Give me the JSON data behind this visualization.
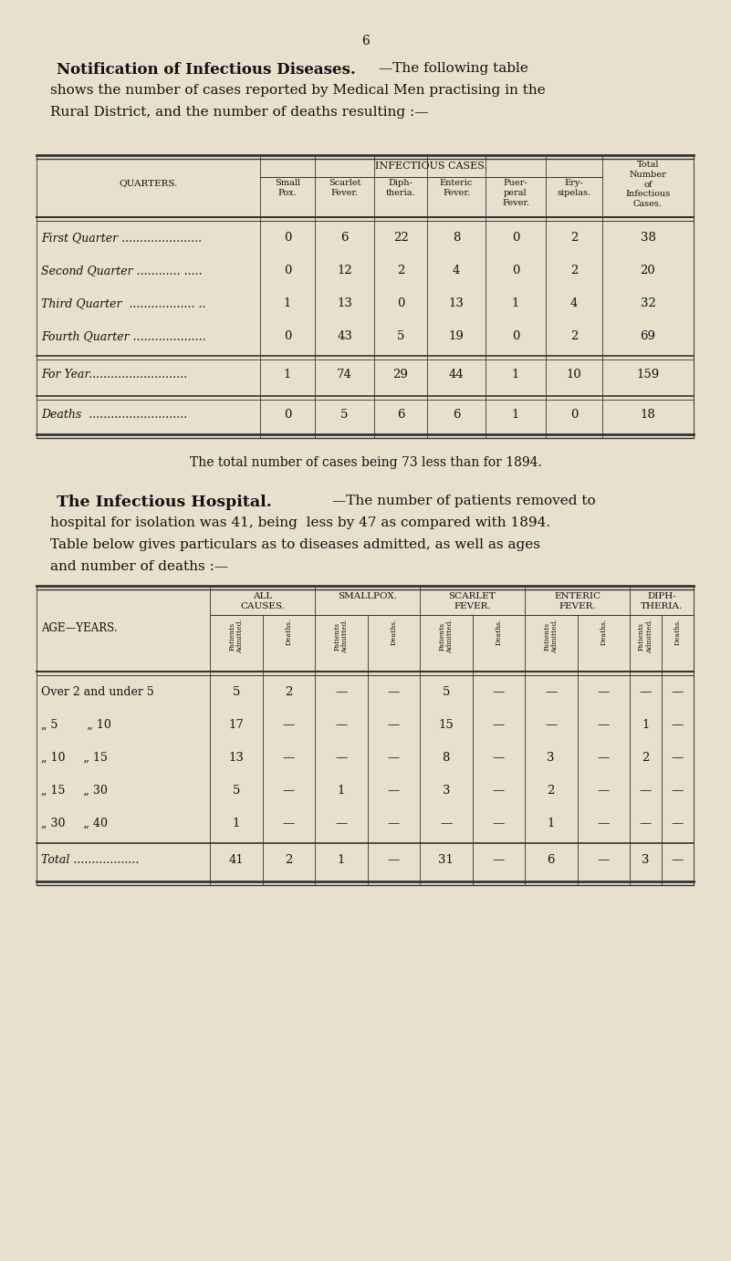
{
  "bg_color": "#e8e0cc",
  "page_number": "6",
  "title1_bold": "Notification of Infectious Diseases.",
  "title1_rest_line1": "—The following table",
  "title1_line2": "shows the number of cases reported by Medical Men practising in the",
  "title1_line3": "Rural District, and the number of deaths resulting :—",
  "table1_rows": [
    [
      "First Quarter ......................",
      "0",
      "6",
      "22",
      "8",
      "0",
      "2",
      "38"
    ],
    [
      "Second Quarter ............ .....",
      "0",
      "12",
      "2",
      "4",
      "0",
      "2",
      "20"
    ],
    [
      "Third Quarter  .................. ..",
      "1",
      "13",
      "0",
      "13",
      "1",
      "4",
      "32"
    ],
    [
      "Fourth Quarter ....................",
      "0",
      "43",
      "5",
      "19",
      "0",
      "2",
      "69"
    ]
  ],
  "table1_for_year": [
    "For Year...........................",
    "1",
    "74",
    "29",
    "44",
    "1",
    "10",
    "159"
  ],
  "table1_deaths": [
    "Deaths  ...........................",
    "0",
    "5",
    "6",
    "6",
    "1",
    "0",
    "18"
  ],
  "footnote1": "The total number of cases being 73 less than for 1894.",
  "title2_bold": "The Infectious Hospital.",
  "title2_line1_rest": "—The number of patients removed to",
  "title2_line2": "hospital for isolation was 41, being  less by 47 as compared with 1894.",
  "title2_line3": "Table below gives particulars as to diseases admitted, as well as ages",
  "title2_line4": "and number of deaths :—",
  "table2_rows": [
    [
      "Over 2 and under 5",
      "5",
      "2",
      "—",
      "—",
      "5",
      "—",
      "—",
      "—",
      "—",
      "—"
    ],
    [
      "„ 5    „ 10",
      "17",
      "—",
      "—",
      "—",
      "15",
      "—",
      "—",
      "—",
      "1",
      "—"
    ],
    [
      "„ 10   „ 15",
      "13",
      "—",
      "—",
      "—",
      "8",
      "—",
      "3",
      "—",
      "2",
      "—"
    ],
    [
      "„ 15   „ 30",
      "5",
      "—",
      "1",
      "—",
      "3",
      "—",
      "2",
      "—",
      "—",
      "—"
    ],
    [
      "„ 30   „ 40",
      "1",
      "—",
      "—",
      "—",
      "—",
      "—",
      "1",
      "—",
      "—",
      "—"
    ]
  ],
  "table2_total": [
    "Total ..................",
    "41",
    "2",
    "1",
    "—",
    "31",
    "—",
    "6",
    "—",
    "3",
    "—"
  ]
}
